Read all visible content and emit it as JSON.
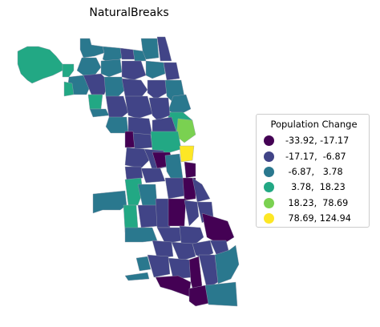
{
  "map": {
    "title": "NaturalBreaks"
  },
  "legend": {
    "title": "Population Change",
    "classes": [
      {
        "label": "-33.92, -17.17",
        "color": "#440154"
      },
      {
        "label": "-17.17,  -6.87",
        "color": "#414487"
      },
      {
        "label": " -6.87,   3.78",
        "color": "#2a788e"
      },
      {
        "label": "  3.78,  18.23",
        "color": "#22a884"
      },
      {
        "label": " 18.23,  78.69",
        "color": "#7ad151"
      },
      {
        "label": " 78.69, 124.94",
        "color": "#fde725"
      }
    ]
  }
}
